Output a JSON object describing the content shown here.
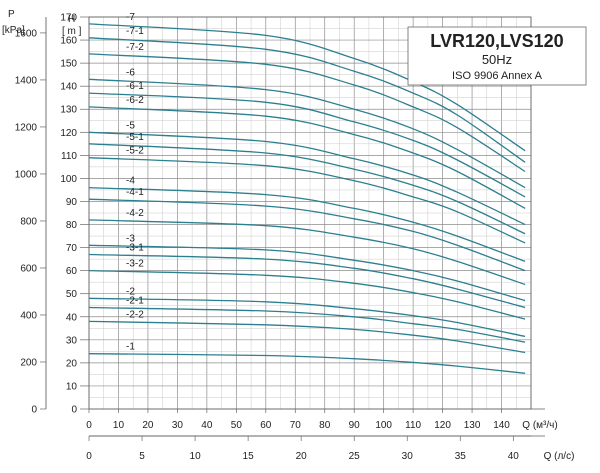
{
  "chart_data": {
    "type": "line",
    "title": "LVR120,LVS120",
    "subtitle": "50Hz",
    "standard": "ISO 9906 Annex A",
    "y_left_label": "H",
    "y_left_unit": "[ m ]",
    "y_pressure_label": "P",
    "y_pressure_unit": "[kPa]",
    "x_label_m3h": "Q (м³/ч)",
    "x_label_ls": "Q (л/с)",
    "ylim": [
      0,
      170
    ],
    "xlim_m3h": [
      0,
      150
    ],
    "head_ticks": [
      0,
      10,
      20,
      30,
      40,
      50,
      60,
      70,
      80,
      90,
      100,
      110,
      120,
      130,
      140,
      150,
      160,
      170
    ],
    "pressure_ticks": [
      0,
      200,
      400,
      600,
      800,
      1000,
      1200,
      1400,
      1600
    ],
    "x_ticks_m3h": [
      0,
      10,
      20,
      30,
      40,
      50,
      60,
      70,
      80,
      90,
      100,
      110,
      120,
      130,
      140
    ],
    "x_ticks_ls": [
      0,
      5,
      10,
      15,
      20,
      25,
      30,
      35,
      40
    ],
    "grid": true,
    "grid_step_m3h": 5,
    "grid_step_head": 5,
    "q_end_m3h": 148,
    "line_color": "#2c7f8f",
    "series": [
      {
        "name": "-7",
        "x": [
          0,
          60,
          90,
          110,
          125,
          148
        ],
        "y": [
          167,
          162,
          152,
          142,
          132,
          112
        ]
      },
      {
        "name": "-7-1",
        "x": [
          0,
          60,
          90,
          110,
          125,
          148
        ],
        "y": [
          161,
          156,
          146.5,
          137,
          127.5,
          107
        ]
      },
      {
        "name": "-7-2",
        "x": [
          0,
          60,
          90,
          110,
          125,
          148
        ],
        "y": [
          154,
          149.5,
          140.5,
          131,
          122,
          103
        ]
      },
      {
        "name": "-6",
        "x": [
          0,
          60,
          90,
          110,
          125,
          148
        ],
        "y": [
          143,
          138.5,
          130,
          121.5,
          112.5,
          96
        ]
      },
      {
        "name": "-6-1",
        "x": [
          0,
          60,
          90,
          110,
          125,
          148
        ],
        "y": [
          137,
          133,
          124.5,
          116.5,
          108,
          92
        ]
      },
      {
        "name": "-6-2",
        "x": [
          0,
          60,
          90,
          110,
          125,
          148
        ],
        "y": [
          131,
          127,
          119,
          111,
          103,
          87
        ]
      },
      {
        "name": "-5",
        "x": [
          0,
          60,
          90,
          110,
          125,
          148
        ],
        "y": [
          120,
          116,
          108.5,
          101.5,
          94,
          80
        ]
      },
      {
        "name": "-5-1",
        "x": [
          0,
          60,
          90,
          110,
          125,
          148
        ],
        "y": [
          115,
          111,
          104,
          97,
          90,
          76
        ]
      },
      {
        "name": "-5-2",
        "x": [
          0,
          60,
          90,
          110,
          125,
          148
        ],
        "y": [
          109,
          105.5,
          99,
          92,
          85.5,
          72
        ]
      },
      {
        "name": "-4",
        "x": [
          0,
          60,
          90,
          110,
          125,
          148
        ],
        "y": [
          96,
          93,
          87,
          81,
          75,
          64
        ]
      },
      {
        "name": "-4-1",
        "x": [
          0,
          60,
          90,
          110,
          125,
          148
        ],
        "y": [
          91,
          88,
          82.5,
          77,
          71,
          60
        ]
      },
      {
        "name": "-4-2",
        "x": [
          0,
          60,
          90,
          110,
          125,
          148
        ],
        "y": [
          82,
          79.5,
          74.5,
          69.5,
          64,
          54
        ]
      },
      {
        "name": "-3",
        "x": [
          0,
          60,
          90,
          110,
          125,
          148
        ],
        "y": [
          71,
          69,
          64.5,
          60,
          55.5,
          47
        ]
      },
      {
        "name": "-3-1",
        "x": [
          0,
          60,
          90,
          110,
          125,
          148
        ],
        "y": [
          67,
          65,
          61,
          56.5,
          52,
          44
        ]
      },
      {
        "name": "-3-2",
        "x": [
          0,
          60,
          90,
          110,
          125,
          148
        ],
        "y": [
          60,
          58,
          54.5,
          50.5,
          46.5,
          39
        ]
      },
      {
        "name": "-2",
        "x": [
          0,
          60,
          90,
          110,
          125,
          148
        ],
        "y": [
          48,
          46.5,
          43.5,
          40.5,
          37.5,
          31.5
        ]
      },
      {
        "name": "-2-1",
        "x": [
          0,
          60,
          90,
          110,
          125,
          148
        ],
        "y": [
          44,
          42.5,
          40,
          37,
          34.5,
          29
        ]
      },
      {
        "name": "-2-2",
        "x": [
          0,
          60,
          90,
          110,
          125,
          148
        ],
        "y": [
          38,
          36.5,
          34.5,
          32,
          29.5,
          24.5
        ]
      },
      {
        "name": "-1",
        "x": [
          0,
          60,
          90,
          110,
          125,
          148
        ],
        "y": [
          24,
          23.2,
          21.8,
          20.2,
          18.6,
          15.5
        ]
      }
    ]
  }
}
